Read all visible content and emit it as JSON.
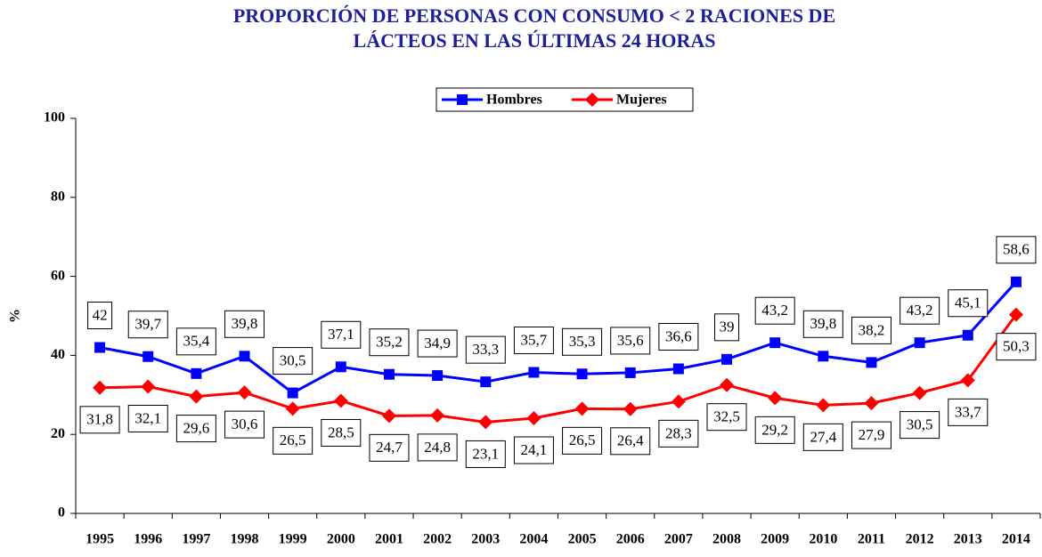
{
  "chart_data": {
    "type": "line",
    "title": [
      "PROPORCIÓN DE PERSONAS CON CONSUMO < 2 RACIONES DE",
      "LÁCTEOS EN LAS ÚLTIMAS 24 HORAS"
    ],
    "y_label": "%",
    "categories": [
      "1995",
      "1996",
      "1997",
      "1998",
      "1999",
      "2000",
      "2001",
      "2002",
      "2003",
      "2004",
      "2005",
      "2006",
      "2007",
      "2008",
      "2009",
      "2010",
      "2011",
      "2012",
      "2013",
      "2014"
    ],
    "series": [
      {
        "name": "Hombres",
        "color": "#0000ff",
        "marker": "square",
        "values": [
          42,
          39.7,
          35.4,
          39.8,
          30.5,
          37.1,
          35.2,
          34.9,
          33.3,
          35.7,
          35.3,
          35.6,
          36.6,
          39,
          43.2,
          39.8,
          38.2,
          43.2,
          45.1,
          58.6
        ],
        "value_labels": [
          "42",
          "39,7",
          "35,4",
          "39,8",
          "30,5",
          "37,1",
          "35,2",
          "34,9",
          "33,3",
          "35,7",
          "35,3",
          "35,6",
          "36,6",
          "39",
          "43,2",
          "39,8",
          "38,2",
          "43,2",
          "45,1",
          "58,6"
        ]
      },
      {
        "name": "Mujeres",
        "color": "#ff0000",
        "marker": "diamond",
        "values": [
          31.8,
          32.1,
          29.6,
          30.6,
          26.5,
          28.5,
          24.7,
          24.8,
          23.1,
          24.1,
          26.5,
          26.4,
          28.3,
          32.5,
          29.2,
          27.4,
          27.9,
          30.5,
          33.7,
          50.3
        ],
        "value_labels": [
          "31,8",
          "32,1",
          "29,6",
          "30,6",
          "26,5",
          "28,5",
          "24,7",
          "24,8",
          "23,1",
          "24,1",
          "26,5",
          "26,4",
          "28,3",
          "32,5",
          "29,2",
          "27,4",
          "27,9",
          "30,5",
          "33,7",
          "50,3"
        ]
      }
    ],
    "ylim": [
      0,
      100
    ],
    "yticks": [
      0,
      20,
      40,
      60,
      80,
      100
    ],
    "legend": "top"
  }
}
